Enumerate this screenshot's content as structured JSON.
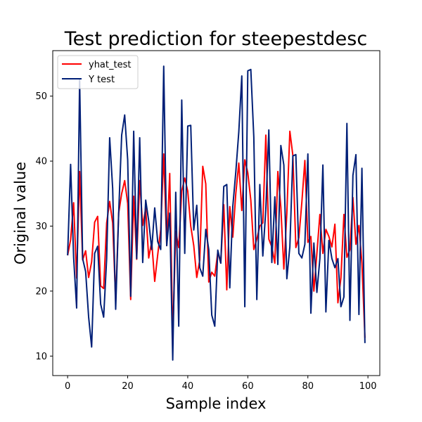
{
  "chart_data": {
    "type": "line",
    "title": "Test prediction for steepestdesc",
    "xlabel": "Sample index",
    "ylabel": "Original value",
    "xlim": [
      -4.95,
      103.95
    ],
    "ylim": [
      7.0,
      57.0
    ],
    "xticks": [
      0,
      20,
      40,
      60,
      80,
      100
    ],
    "yticks": [
      10,
      20,
      30,
      40,
      50
    ],
    "grid": false,
    "legend_position": "top-left",
    "x": [
      0,
      1,
      2,
      3,
      4,
      5,
      6,
      7,
      8,
      9,
      10,
      11,
      12,
      13,
      14,
      15,
      16,
      17,
      18,
      19,
      20,
      21,
      22,
      23,
      24,
      25,
      26,
      27,
      28,
      29,
      30,
      31,
      32,
      33,
      34,
      35,
      36,
      37,
      38,
      39,
      40,
      41,
      42,
      43,
      44,
      45,
      46,
      47,
      48,
      49,
      50,
      51,
      52,
      53,
      54,
      55,
      56,
      57,
      58,
      59,
      60,
      61,
      62,
      63,
      64,
      65,
      66,
      67,
      68,
      69,
      70,
      71,
      72,
      73,
      74,
      75,
      76,
      77,
      78,
      79,
      80,
      81,
      82,
      83,
      84,
      85,
      86,
      87,
      88,
      89,
      90,
      91,
      92,
      93,
      94,
      95,
      96,
      97,
      98,
      99
    ],
    "series": [
      {
        "name": "yhat_test",
        "color": "#ff0000",
        "values": [
          25.5,
          27.9,
          33.6,
          22.0,
          38.4,
          24.8,
          26.2,
          22.1,
          24.5,
          30.6,
          31.5,
          20.8,
          20.4,
          30.5,
          33.8,
          30.5,
          18.5,
          32.0,
          35.0,
          37.0,
          33.5,
          18.7,
          34.6,
          24.9,
          37.0,
          30.1,
          32.7,
          25.1,
          27.6,
          21.5,
          25.6,
          29.5,
          41.1,
          27.0,
          38.1,
          12.8,
          29.2,
          26.7,
          35.4,
          37.4,
          35.4,
          30.0,
          27.0,
          22.1,
          24.8,
          39.2,
          36.5,
          21.4,
          22.9,
          22.3,
          26.0,
          24.3,
          33.3,
          20.2,
          33.0,
          28.3,
          35.0,
          39.7,
          32.4,
          40.2,
          38.2,
          34.0,
          26.4,
          28.0,
          30.0,
          30.5,
          44.0,
          28.0,
          26.8,
          24.3,
          38.4,
          32.9,
          23.4,
          32.0,
          44.6,
          40.9,
          26.7,
          28.2,
          33.7,
          40.1,
          27.5,
          28.4,
          20.0,
          25.8,
          31.8,
          25.8,
          29.5,
          28.4,
          26.8,
          30.3,
          18.2,
          22.0,
          31.8,
          25.2,
          26.4,
          34.4,
          27.2,
          30.1,
          24.3,
          12.8
        ]
      },
      {
        "name": "Y test",
        "color": "#001f77",
        "values": [
          25.5,
          39.5,
          25.2,
          17.4,
          52.5,
          25.0,
          23.0,
          16.0,
          11.4,
          25.8,
          26.9,
          18.0,
          16.0,
          25.0,
          43.6,
          35.8,
          17.2,
          32.0,
          44.0,
          47.1,
          40.2,
          19.2,
          44.6,
          25.0,
          43.6,
          24.4,
          34.0,
          30.8,
          26.4,
          32.8,
          27.6,
          26.4,
          54.6,
          27.0,
          32.0,
          9.4,
          35.2,
          14.6,
          49.4,
          25.8,
          45.4,
          45.5,
          29.4,
          33.2,
          23.6,
          22.3,
          29.5,
          26.4,
          16.3,
          14.6,
          26.3,
          24.3,
          36.1,
          36.4,
          20.5,
          33.0,
          38.3,
          44.5,
          53.1,
          17.6,
          53.9,
          54.1,
          43.7,
          18.7,
          36.4,
          25.4,
          32.6,
          44.8,
          24.4,
          34.5,
          24.1,
          42.4,
          39.4,
          21.9,
          26.8,
          40.8,
          41.0,
          25.8,
          25.1,
          27.2,
          41.1,
          16.6,
          27.4,
          19.8,
          25.0,
          39.4,
          16.8,
          27.8,
          25.0,
          23.6,
          25.0,
          17.6,
          19.1,
          45.8,
          15.5,
          37.8,
          41.0,
          16.4,
          38.9,
          12.0
        ]
      }
    ]
  }
}
